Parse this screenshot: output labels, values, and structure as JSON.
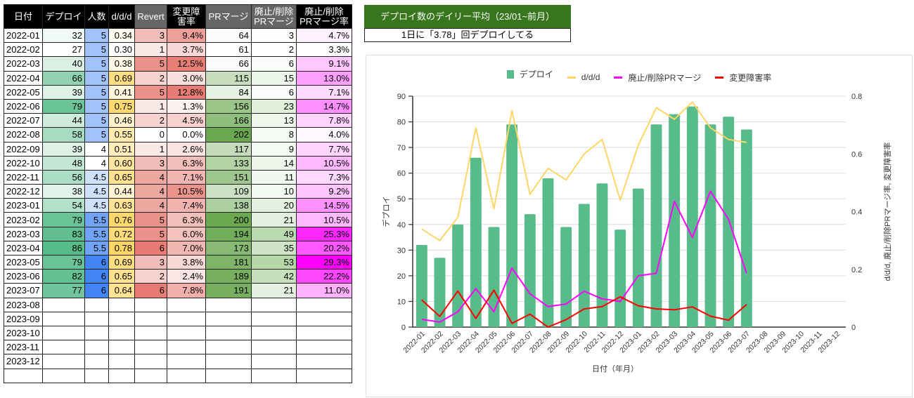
{
  "table": {
    "headers": [
      "日付",
      "デプロイ",
      "人数",
      "d/d/d",
      "Revert",
      "変更障\n害率",
      "PRマージ",
      "廃止/削除\nPRマージ",
      "廃止/削除\nPRマージ率"
    ],
    "header_styles": [
      "black",
      "black",
      "black",
      "black",
      "gray",
      "black",
      "gray",
      "gray",
      "black"
    ],
    "rows": [
      [
        "2022-01",
        "32",
        "5",
        "0.34",
        "3",
        "9.4%",
        "64",
        "3",
        "4.7%"
      ],
      [
        "2022-02",
        "27",
        "5",
        "0.30",
        "1",
        "3.7%",
        "61",
        "2",
        "3.3%"
      ],
      [
        "2022-03",
        "40",
        "5",
        "0.38",
        "5",
        "12.5%",
        "66",
        "6",
        "9.1%"
      ],
      [
        "2022-04",
        "66",
        "5",
        "0.69",
        "2",
        "3.0%",
        "115",
        "15",
        "13.0%"
      ],
      [
        "2022-05",
        "39",
        "5",
        "0.41",
        "5",
        "12.8%",
        "84",
        "6",
        "7.1%"
      ],
      [
        "2022-06",
        "79",
        "5",
        "0.75",
        "1",
        "1.3%",
        "156",
        "23",
        "14.7%"
      ],
      [
        "2022-07",
        "44",
        "5",
        "0.46",
        "2",
        "4.5%",
        "166",
        "13",
        "7.8%"
      ],
      [
        "2022-08",
        "58",
        "5",
        "0.55",
        "0",
        "0.0%",
        "202",
        "8",
        "4.0%"
      ],
      [
        "2022-09",
        "39",
        "4",
        "0.51",
        "1",
        "2.6%",
        "117",
        "9",
        "7.7%"
      ],
      [
        "2022-10",
        "48",
        "4",
        "0.60",
        "3",
        "6.3%",
        "133",
        "14",
        "10.5%"
      ],
      [
        "2022-11",
        "56",
        "4.5",
        "0.65",
        "4",
        "7.1%",
        "151",
        "11",
        "7.3%"
      ],
      [
        "2022-12",
        "38",
        "4.5",
        "0.44",
        "4",
        "10.5%",
        "109",
        "10",
        "9.2%"
      ],
      [
        "2023-01",
        "54",
        "4.5",
        "0.63",
        "4",
        "7.4%",
        "138",
        "20",
        "14.5%"
      ],
      [
        "2023-02",
        "79",
        "5.5",
        "0.76",
        "5",
        "6.3%",
        "200",
        "21",
        "10.5%"
      ],
      [
        "2023-03",
        "83",
        "5.5",
        "0.72",
        "5",
        "6.0%",
        "194",
        "49",
        "25.3%"
      ],
      [
        "2023-04",
        "86",
        "5.5",
        "0.78",
        "6",
        "7.0%",
        "173",
        "35",
        "20.2%"
      ],
      [
        "2023-05",
        "79",
        "6",
        "0.69",
        "3",
        "3.8%",
        "181",
        "53",
        "29.3%"
      ],
      [
        "2023-06",
        "82",
        "6",
        "0.65",
        "2",
        "2.4%",
        "189",
        "42",
        "22.2%"
      ],
      [
        "2023-07",
        "77",
        "6",
        "0.64",
        "6",
        "7.8%",
        "191",
        "21",
        "11.0%"
      ],
      [
        "2023-08",
        "",
        "",
        "",
        "",
        "",
        "",
        "",
        ""
      ],
      [
        "2023-09",
        "",
        "",
        "",
        "",
        "",
        "",
        "",
        ""
      ],
      [
        "2023-10",
        "",
        "",
        "",
        "",
        "",
        "",
        "",
        ""
      ],
      [
        "2023-11",
        "",
        "",
        "",
        "",
        "",
        "",
        "",
        ""
      ],
      [
        "2023-12",
        "",
        "",
        "",
        "",
        "",
        "",
        "",
        ""
      ],
      [
        "",
        "",
        "",
        "",
        "",
        "",
        "",
        "",
        ""
      ]
    ],
    "scale_colors": {
      "deploy": {
        "low": "#ffffff",
        "high": "#57bb8a"
      },
      "people": {
        "low": "#ffffff",
        "high": "#4285f4"
      },
      "ddd": {
        "low": "#ffffff",
        "high": "#ffd666"
      },
      "revert": {
        "low": "#ffffff",
        "high": "#e67c73"
      },
      "failure_rate": {
        "low": "#ffffff",
        "high": "#e67c73"
      },
      "pr_merge": {
        "low": "#ffffff",
        "high": "#6aa84f"
      },
      "removed_pr": {
        "low": "#ffffff",
        "high": "#b6d7a8"
      },
      "removed_rate": {
        "low": "#ffffff",
        "high": "#ff00ff"
      }
    }
  },
  "summary": {
    "title": "デプロイ数のデイリー平均（23/01~前月）",
    "value_text": "1日に「3.78」回デプロイしてる"
  },
  "chart_data": {
    "type": "bar",
    "title": "",
    "xlabel": "日付（年月）",
    "ylabel": "デプロイ",
    "ylabel_right": "d/d/d, 廃止/削除PRマージ率, 変更障害率",
    "ylim": [
      0,
      90
    ],
    "ylim_right": [
      0,
      0.8
    ],
    "yticks": [
      "0",
      "10",
      "20",
      "30",
      "40",
      "50",
      "60",
      "70",
      "80",
      "90"
    ],
    "yticks_right": [
      "0",
      "0.2",
      "0.4",
      "0.6",
      "0.8"
    ],
    "grid": true,
    "legend_position": "top",
    "categories": [
      "2022-01",
      "2022-02",
      "2022-03",
      "2022-04",
      "2022-05",
      "2022-06",
      "2022-07",
      "2022-08",
      "2022-09",
      "2022-10",
      "2022-11",
      "2022-12",
      "2023-01",
      "2023-02",
      "2023-03",
      "2023-04",
      "2023-05",
      "2023-06",
      "2023-07",
      "2023-08",
      "2023-09",
      "2023-10",
      "2023-11",
      "2023-12"
    ],
    "series": [
      {
        "name": "デプロイ",
        "kind": "bar",
        "axis": "left",
        "color": "#57bb8a",
        "values": [
          32,
          27,
          40,
          66,
          39,
          79,
          44,
          58,
          39,
          48,
          56,
          38,
          54,
          79,
          83,
          86,
          79,
          82,
          77,
          null,
          null,
          null,
          null,
          null
        ]
      },
      {
        "name": "d/d/d",
        "kind": "line",
        "axis": "right",
        "color": "#ffd666",
        "values": [
          0.34,
          0.3,
          0.38,
          0.69,
          0.41,
          0.75,
          0.46,
          0.55,
          0.51,
          0.6,
          0.65,
          0.44,
          0.63,
          0.76,
          0.72,
          0.78,
          0.69,
          0.65,
          0.64,
          null,
          null,
          null,
          null,
          null
        ]
      },
      {
        "name": "廃止/削除PRマージ",
        "kind": "line",
        "axis": "left",
        "color": "#ff00ff",
        "values": [
          3,
          2,
          6,
          15,
          6,
          23,
          13,
          8,
          9,
          14,
          11,
          10,
          20,
          21,
          49,
          35,
          53,
          42,
          21,
          null,
          null,
          null,
          null,
          null
        ]
      },
      {
        "name": "変更障害率",
        "kind": "line",
        "axis": "right",
        "color": "#ff0000",
        "values": [
          0.094,
          0.037,
          0.125,
          0.03,
          0.128,
          0.013,
          0.045,
          0.0,
          0.026,
          0.063,
          0.071,
          0.105,
          0.074,
          0.063,
          0.06,
          0.07,
          0.038,
          0.024,
          0.078,
          null,
          null,
          null,
          null,
          null
        ]
      }
    ]
  }
}
